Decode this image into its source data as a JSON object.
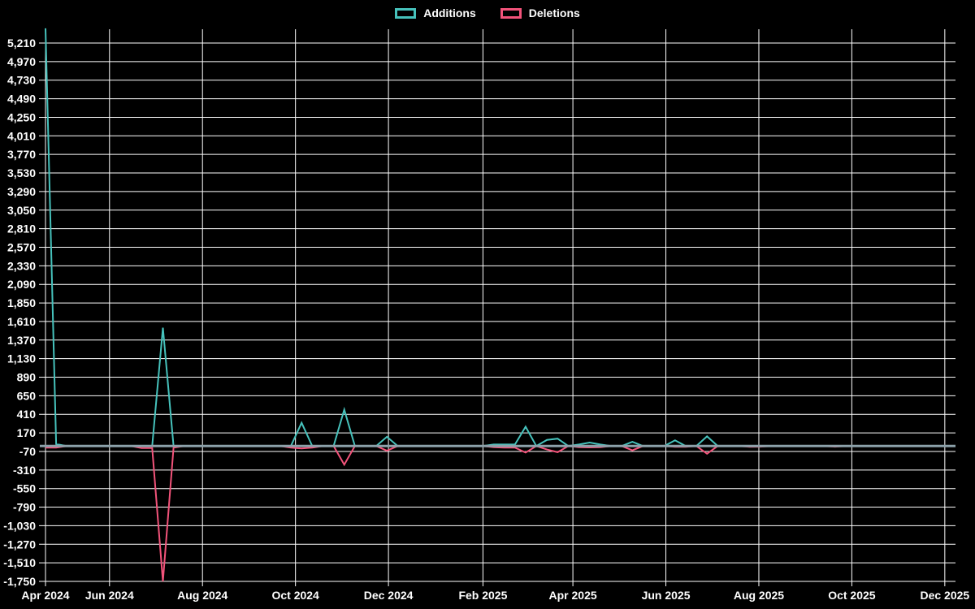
{
  "page": {
    "background": "#000000"
  },
  "legend": {
    "items": [
      {
        "label": "Additions",
        "color": "#46C2BC"
      },
      {
        "label": "Deletions",
        "color": "#F2537A"
      }
    ]
  },
  "chart_data": {
    "type": "line",
    "title": "",
    "xlabel": "",
    "ylabel": "",
    "grid": true,
    "grid_color": "#FFFFFF",
    "background_color": "#000000",
    "zero_line_color": "#8CA1AA",
    "legend_position": "top-center",
    "x_axis": {
      "kind": "time-weekly",
      "start_week": "2024-04-20",
      "interval_days": 7,
      "tick_labels": [
        "Apr 2024",
        "Jun 2024",
        "Aug 2024",
        "Oct 2024",
        "Dec 2024",
        "Feb 2025",
        "Apr 2025",
        "Jun 2025",
        "Aug 2025",
        "Oct 2025",
        "Dec 2025"
      ]
    },
    "y_axis": {
      "min": -1750,
      "max": 5210,
      "step": 240,
      "tick_labels": [
        "5,210",
        "4,970",
        "4,730",
        "4,490",
        "4,250",
        "4,010",
        "3,770",
        "3,530",
        "3,290",
        "3,050",
        "2,810",
        "2,570",
        "2,330",
        "2,090",
        "1,850",
        "1,610",
        "1,370",
        "1,130",
        "890",
        "650",
        "410",
        "170",
        "-70",
        "-310",
        "-550",
        "-790",
        "-1,030",
        "-1,270",
        "-1,510",
        "-1,750"
      ]
    },
    "series": [
      {
        "name": "Additions",
        "color": "#46C2BC",
        "values": [
          5400,
          25,
          0,
          0,
          0,
          0,
          0,
          0,
          0,
          0,
          0,
          1530,
          0,
          0,
          0,
          0,
          0,
          0,
          0,
          0,
          0,
          0,
          0,
          0,
          300,
          0,
          0,
          0,
          470,
          0,
          0,
          0,
          120,
          0,
          0,
          0,
          0,
          0,
          0,
          0,
          0,
          0,
          20,
          20,
          20,
          250,
          0,
          80,
          95,
          0,
          20,
          45,
          20,
          0,
          0,
          55,
          0,
          0,
          0,
          75,
          0,
          0,
          125,
          0,
          0,
          0,
          0,
          0,
          0,
          0,
          0,
          0,
          0,
          0,
          0,
          0,
          0,
          0,
          0,
          0,
          0,
          0,
          0,
          0,
          0,
          0
        ]
      },
      {
        "name": "Deletions",
        "color": "#F2537A",
        "values": [
          -20,
          -20,
          0,
          0,
          0,
          0,
          0,
          0,
          0,
          -25,
          -25,
          -1750,
          -20,
          0,
          0,
          0,
          0,
          0,
          0,
          0,
          0,
          0,
          0,
          -20,
          -30,
          -20,
          0,
          0,
          -240,
          0,
          0,
          0,
          -60,
          0,
          0,
          0,
          0,
          0,
          0,
          0,
          0,
          0,
          -15,
          -20,
          -20,
          -85,
          0,
          -45,
          -80,
          0,
          -15,
          -18,
          -15,
          0,
          0,
          -55,
          0,
          0,
          0,
          -10,
          -10,
          0,
          -100,
          0,
          0,
          0,
          -10,
          -8,
          0,
          0,
          0,
          0,
          0,
          0,
          -8,
          0,
          0,
          0,
          0,
          0,
          0,
          0,
          0,
          0,
          0,
          0
        ]
      }
    ]
  }
}
